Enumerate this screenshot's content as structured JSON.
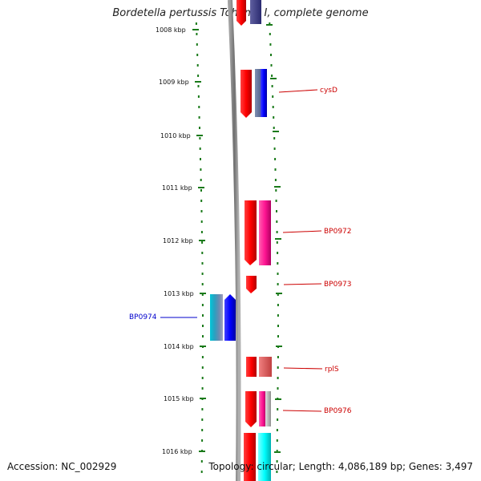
{
  "title": "Bordetella pertussis Tohama I, complete genome",
  "accession": "Accession: NC_002929",
  "summary": "Topology: circular; Length: 4,086,189 bp; Genes: 3,497",
  "kbp_labels": [
    "1008 kbp",
    "1009 kbp",
    "1010 kbp",
    "1011 kbp",
    "1012 kbp",
    "1013 kbp",
    "1014 kbp",
    "1015 kbp",
    "1016 kbp"
  ],
  "gene_labels": [
    {
      "text": "cysD",
      "color": "#cc0000"
    },
    {
      "text": "BP0972",
      "color": "#cc0000"
    },
    {
      "text": "BP0973",
      "color": "#cc0000"
    },
    {
      "text": "BP0974",
      "color": "#0000cc"
    },
    {
      "text": "rplS",
      "color": "#cc0000"
    },
    {
      "text": "BP0976",
      "color": "#cc0000"
    }
  ],
  "colors": {
    "tick": "#1a7a1a",
    "backbone": "#888888",
    "cds_red": "#ff0000",
    "blue": "#0000ff",
    "magenta": "#ff1493",
    "cyan": "#00ffff",
    "salmon": "#e06060",
    "navy": "#3c3c8c"
  }
}
